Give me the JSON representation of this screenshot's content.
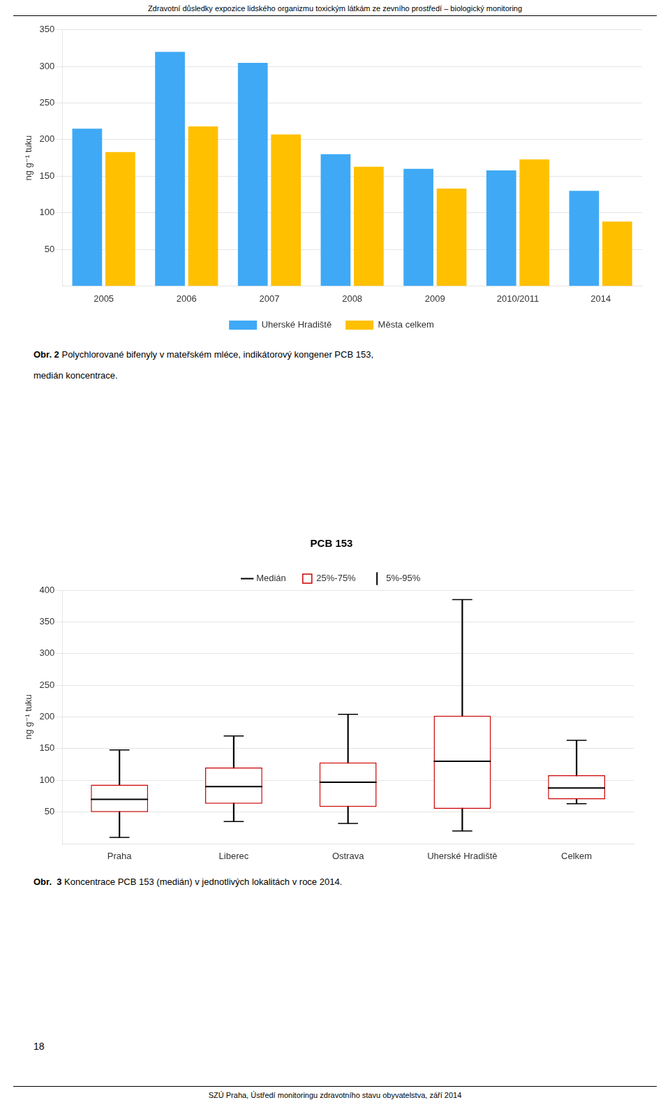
{
  "page_title": "Zdravotní důsledky expozice lidského organizmu toxickým látkám ze zevního prostředí – biologický monitoring",
  "page_footer": "SZÚ Praha, Ústředí monitoringu zdravotního stavu obyvatelstva, září 2014",
  "page_number": "18",
  "caption1_bold": "Obr. 2",
  "caption1_text": " Polychlorované bifenyly v mateřském mléce, indikátorový kongener PCB 153,",
  "caption1b": "medián koncentrace.",
  "caption2_bold": "Obr.  3",
  "caption2_text": " Koncentrace PCB 153 (medián) v jednotlivých lokalitách v roce 2014.",
  "chart_data": [
    {
      "type": "bar",
      "ylabel": "ng g⁻¹ tuku",
      "categories": [
        "2005",
        "2006",
        "2007",
        "2008",
        "2009",
        "2010/2011",
        "2014"
      ],
      "series": [
        {
          "name": "Uherské Hradiště",
          "color": "#3fa9f5",
          "values": [
            215,
            320,
            305,
            180,
            160,
            158,
            130
          ]
        },
        {
          "name": "Města celkem",
          "color": "#ffc000",
          "values": [
            183,
            218,
            207,
            163,
            133,
            173,
            88
          ]
        }
      ],
      "ylim": [
        0,
        350
      ],
      "yticks": [
        50,
        100,
        150,
        200,
        250,
        300,
        350
      ],
      "grid": "y",
      "legend": "bottom"
    },
    {
      "type": "box",
      "title": "PCB 153",
      "ylabel": "ng g⁻¹ tuku",
      "categories": [
        "Praha",
        "Liberec",
        "Ostrava",
        "Uherské Hradiště",
        "Celkem"
      ],
      "series": [
        {
          "name": "Medián",
          "type": "median",
          "color": "#000000",
          "values": [
            70,
            90,
            97,
            130,
            88
          ]
        },
        {
          "name": "25%-75%",
          "type": "box",
          "color": "#CC0000",
          "low": [
            50,
            63,
            58,
            55,
            70
          ],
          "high": [
            93,
            120,
            128,
            202,
            108
          ]
        },
        {
          "name": "5%-95%",
          "type": "whisker",
          "color": "#000000",
          "low": [
            10,
            35,
            32,
            20,
            63
          ],
          "high": [
            148,
            170,
            204,
            385,
            163
          ]
        }
      ],
      "ylim": [
        0,
        400
      ],
      "yticks": [
        50,
        100,
        150,
        200,
        250,
        300,
        350,
        400
      ],
      "grid": "y",
      "legend": "top"
    }
  ]
}
